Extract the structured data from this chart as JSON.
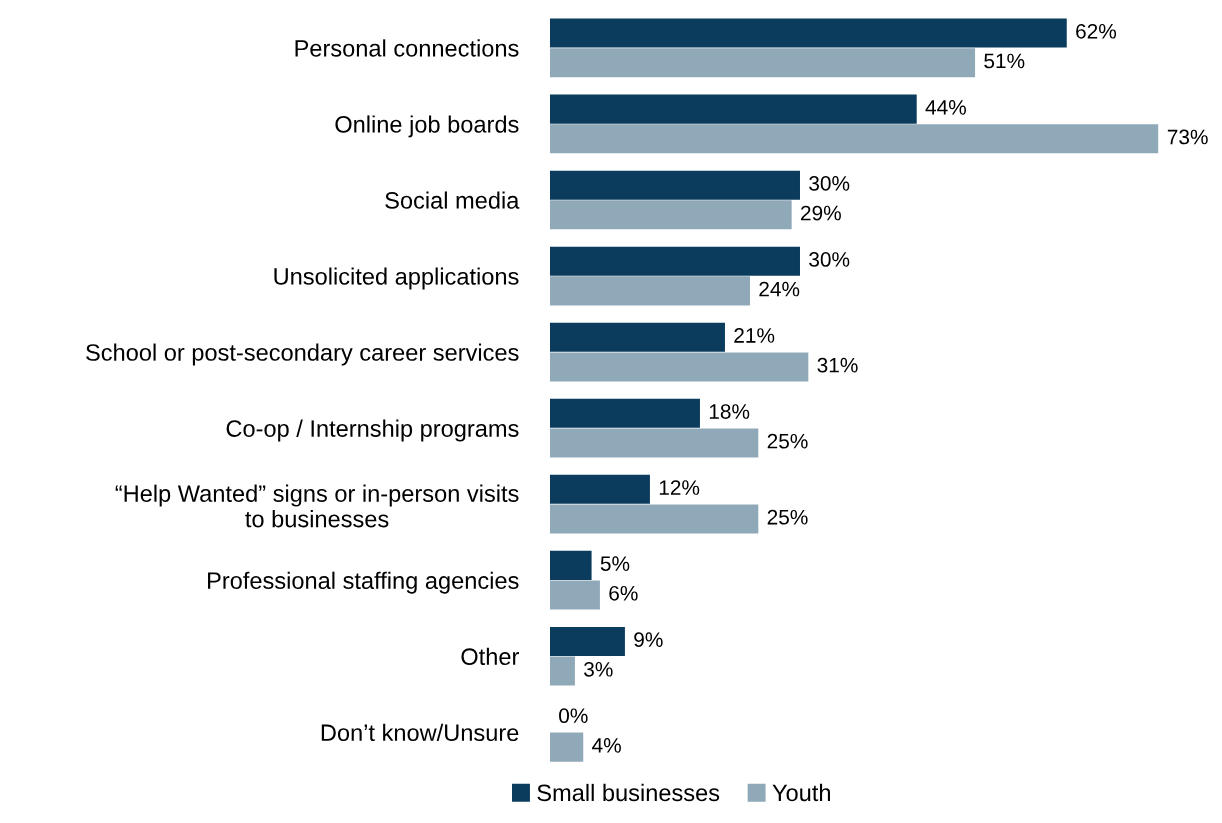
{
  "chart_data": {
    "type": "bar",
    "orientation": "horizontal",
    "categories": [
      "Personal connections",
      "Online job boards",
      "Social media",
      "Unsolicited applications",
      "School or post-secondary career services",
      "Co-op / Internship programs",
      "“Help Wanted” signs or in-person visits\nto businesses",
      "Professional staffing agencies",
      "Other",
      "Don’t know/Unsure"
    ],
    "series": [
      {
        "name": "Small businesses",
        "color": "#0b3c5d",
        "values": [
          62,
          44,
          30,
          30,
          21,
          18,
          12,
          5,
          9,
          0
        ],
        "value_labels": [
          "62%",
          "44%",
          "30%",
          "30%",
          "21%",
          "18%",
          "12%",
          "5%",
          "9%",
          "0%"
        ]
      },
      {
        "name": "Youth",
        "color": "#8fa9b8",
        "values": [
          51,
          73,
          29,
          24,
          31,
          25,
          25,
          6,
          3,
          4
        ],
        "value_labels": [
          "51%",
          "73%",
          "29%",
          "24%",
          "31%",
          "25%",
          "25%",
          "6%",
          "3%",
          "4%"
        ]
      }
    ],
    "tick_labels": "y",
    "grid": false,
    "legend": "bottom"
  }
}
